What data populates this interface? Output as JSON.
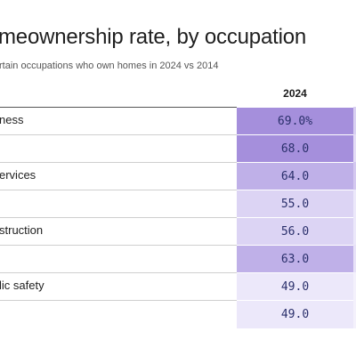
{
  "title": "meownership rate, by occupation",
  "subtitle": "rtain occupations who own homes in 2024 vs 2014",
  "colors": {
    "shade_high": "#a58fdc",
    "shade_mid": "#bfb0e8",
    "shade_low": "#dcd4f4",
    "shade_lowest": "#ece8fa",
    "value_text": "#2a2f6b"
  },
  "chart_data": {
    "type": "table",
    "columns": [
      "2024"
    ],
    "rows": [
      {
        "label": "ness",
        "value": "69.0%",
        "num": 69.0
      },
      {
        "label": "",
        "value": "68.0",
        "num": 68.0
      },
      {
        "label": "ervices",
        "value": "64.0",
        "num": 64.0
      },
      {
        "label": "",
        "value": "55.0",
        "num": 55.0
      },
      {
        "label": "struction",
        "value": "56.0",
        "num": 56.0
      },
      {
        "label": "",
        "value": "63.0",
        "num": 63.0
      },
      {
        "label": "lic safety",
        "value": "49.0",
        "num": 49.0
      },
      {
        "label": "",
        "value": "49.0",
        "num": 49.0
      }
    ],
    "edge_colors": [
      "#d9d0f2",
      "#e4dcf6",
      "#d4c8f0",
      "#ece8fa",
      "#ece8fa",
      "#e8e2f8",
      "#f4f1fc",
      "#f4f1fc"
    ]
  }
}
